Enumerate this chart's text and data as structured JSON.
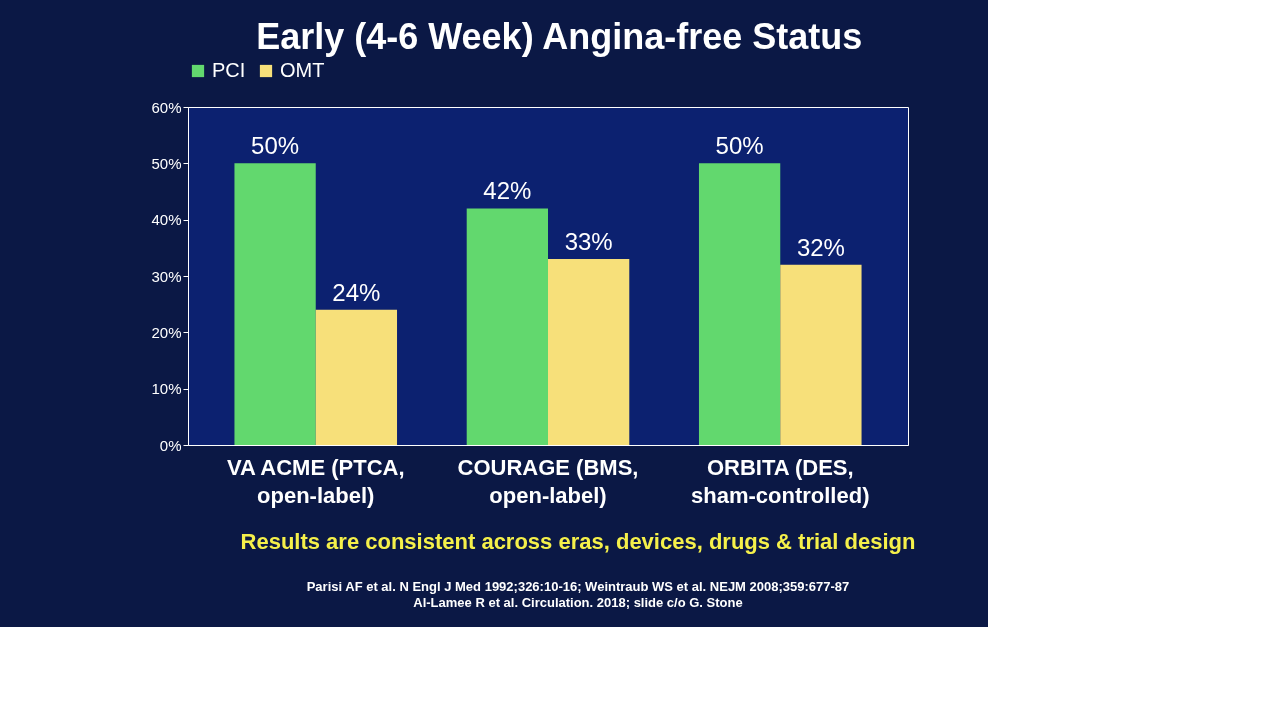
{
  "chart_data": {
    "type": "bar",
    "title": "Early (4-6 Week) Angina-free Status",
    "categories": [
      "VA ACME (PTCA,\nopen-label)",
      "COURAGE (BMS,\nopen-label)",
      "ORBITA (DES,\nsham-controlled)"
    ],
    "series": [
      {
        "name": "PCI",
        "color": "#62d86e",
        "values": [
          50,
          42,
          50
        ],
        "value_labels": [
          "50%",
          "42%",
          "50%"
        ]
      },
      {
        "name": "OMT",
        "color": "#f7e07a",
        "values": [
          24,
          33,
          32
        ],
        "value_labels": [
          "24%",
          "33%",
          "32%"
        ]
      }
    ],
    "ylim": [
      0,
      60
    ],
    "yticks": [
      {
        "value": 0,
        "label": "0%"
      },
      {
        "value": 10,
        "label": "10%"
      },
      {
        "value": 20,
        "label": "20%"
      },
      {
        "value": 30,
        "label": "30%"
      },
      {
        "value": 40,
        "label": "40%"
      },
      {
        "value": 50,
        "label": "50%"
      },
      {
        "value": 60,
        "label": "60%"
      }
    ],
    "grid": false,
    "legend": "top",
    "annotations": [
      "Results are consistent across eras, devices, drugs & trial design",
      "Parisi AF et al. N Engl J Med 1992;326:10-16; Weintraub WS et al. NEJM 2008;359:677-87\nAl-Lamee R et al. Circulation. 2018; slide c/o G. Stone"
    ]
  }
}
